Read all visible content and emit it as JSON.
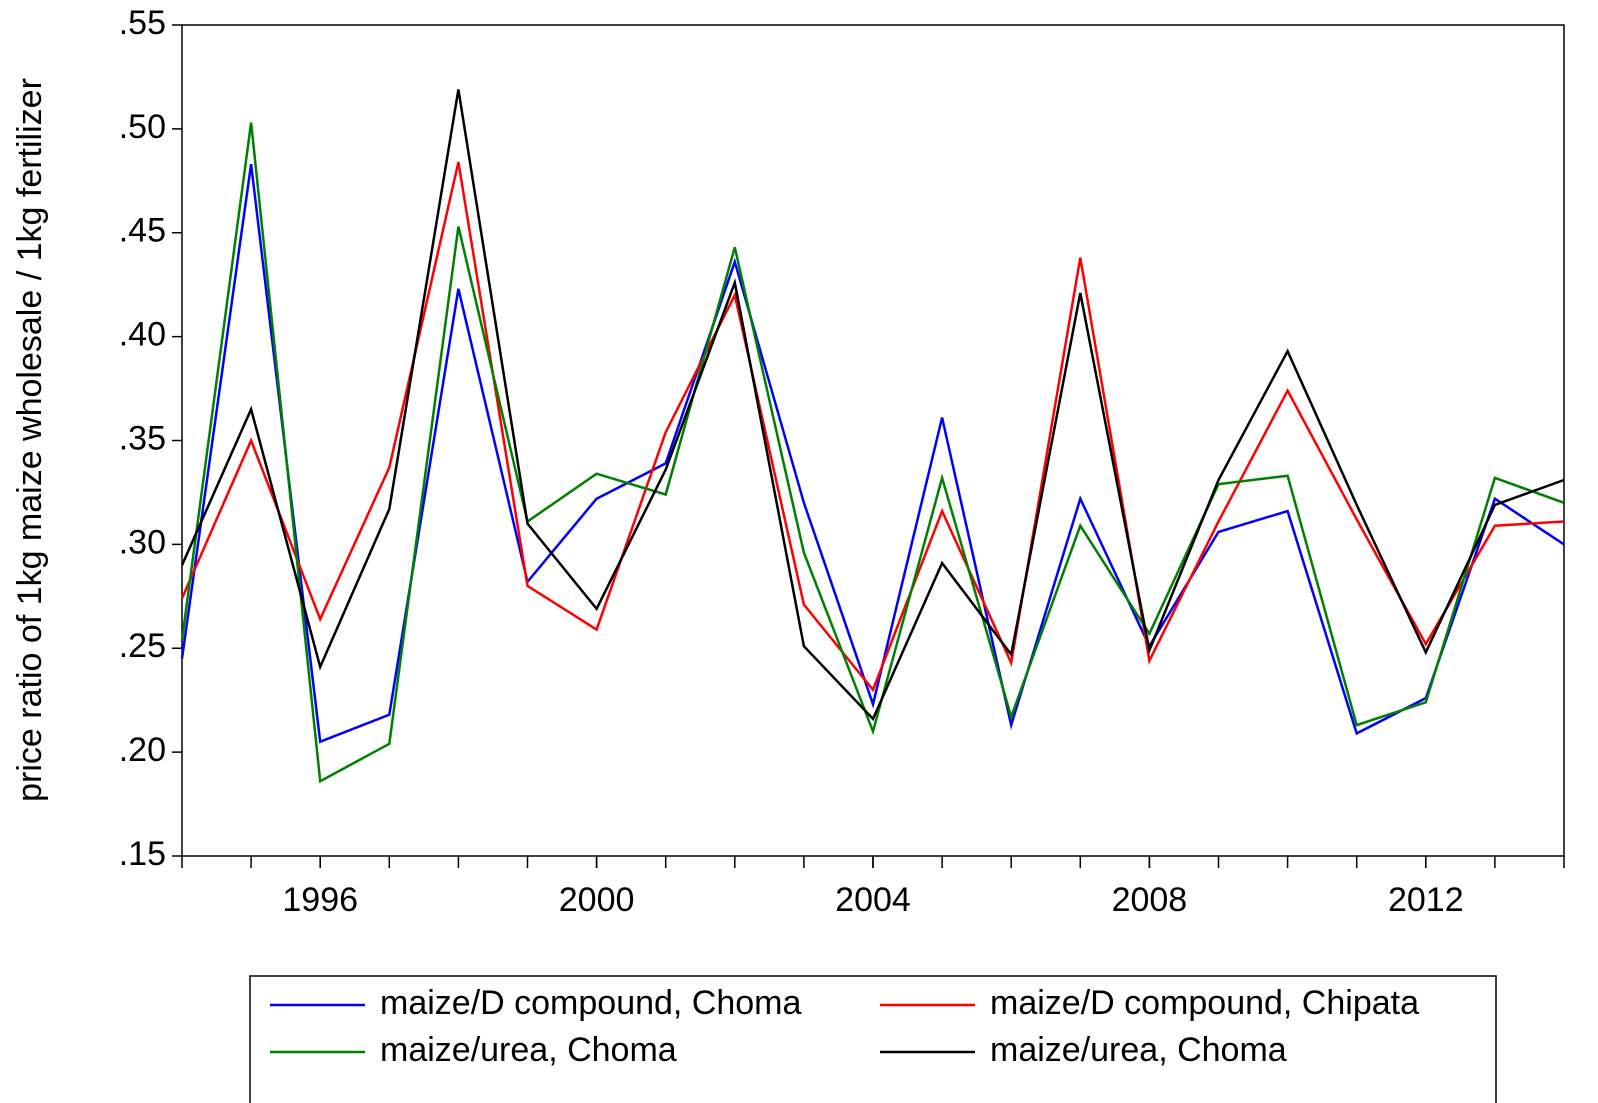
{
  "chart_data": {
    "type": "line",
    "y_label": "price ratio of 1kg maize wholesale / 1kg fertilizer",
    "x": [
      1994,
      1995,
      1996,
      1997,
      1998,
      1999,
      2000,
      2001,
      2002,
      2003,
      2004,
      2005,
      2006,
      2007,
      2008,
      2009,
      2010,
      2011,
      2012,
      2013,
      2014
    ],
    "series": [
      {
        "name": "maize/D compound, Choma",
        "color": "#0000ff",
        "values": [
          0.245,
          0.483,
          0.205,
          0.218,
          0.423,
          0.282,
          0.322,
          0.339,
          0.436,
          0.32,
          0.223,
          0.361,
          0.213,
          0.322,
          0.251,
          0.306,
          0.316,
          0.209,
          0.226,
          0.322,
          0.3
        ]
      },
      {
        "name": "maize/D compound, Chipata",
        "color": "#ff0000",
        "values": [
          0.274,
          0.35,
          0.264,
          0.337,
          0.484,
          0.28,
          0.259,
          0.354,
          0.42,
          0.271,
          0.23,
          0.316,
          0.243,
          0.438,
          0.244,
          0.311,
          0.374,
          0.312,
          0.252,
          0.309,
          0.311
        ]
      },
      {
        "name": "maize/urea, Choma",
        "color": "#008000",
        "values": [
          0.254,
          0.503,
          0.186,
          0.204,
          0.453,
          0.311,
          0.334,
          0.324,
          0.443,
          0.296,
          0.21,
          0.332,
          0.217,
          0.309,
          0.257,
          0.329,
          0.333,
          0.213,
          0.224,
          0.332,
          0.32
        ]
      },
      {
        "name": "maize/urea, Choma",
        "color": "#000000",
        "values": [
          0.29,
          0.365,
          0.241,
          0.317,
          0.519,
          0.31,
          0.269,
          0.336,
          0.426,
          0.251,
          0.216,
          0.291,
          0.247,
          0.421,
          0.249,
          0.331,
          0.393,
          0.319,
          0.248,
          0.319,
          0.331
        ]
      }
    ],
    "xlim": [
      1994,
      2014
    ],
    "xticks": [
      1996,
      2000,
      2004,
      2008,
      2012
    ],
    "ylim": [
      0.15,
      0.55
    ],
    "yticks": [
      {
        "value": 0.15,
        "label": ".15"
      },
      {
        "value": 0.2,
        "label": ".20"
      },
      {
        "value": 0.25,
        "label": ".25"
      },
      {
        "value": 0.3,
        "label": ".30"
      },
      {
        "value": 0.35,
        "label": ".35"
      },
      {
        "value": 0.4,
        "label": ".40"
      },
      {
        "value": 0.45,
        "label": ".45"
      },
      {
        "value": 0.5,
        "label": ".50"
      },
      {
        "value": 0.55,
        "label": ".55"
      }
    ],
    "grid": false,
    "legend": "bottom"
  }
}
